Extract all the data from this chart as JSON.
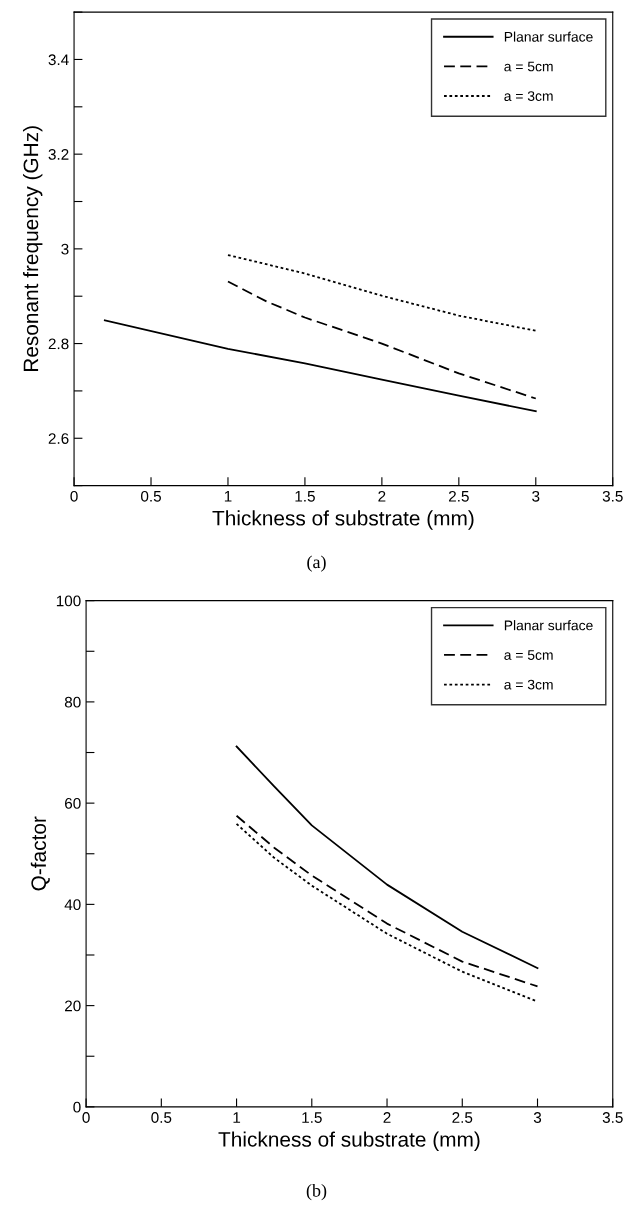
{
  "chart_data": [
    {
      "type": "line",
      "xlabel": "Thickness of substrate (mm)",
      "ylabel": "Resonant frequency (GHz)",
      "annotations": [
        "(a)"
      ],
      "xlim": [
        0,
        3.5
      ],
      "xticks": [
        0,
        0.5,
        1,
        1.5,
        2,
        2.5,
        3,
        3.5
      ],
      "ylim": [
        2.5,
        3.5
      ],
      "yticks": [
        {
          "value": 2.5,
          "label": null
        },
        2.6,
        {
          "value": 2.7,
          "label": null
        },
        2.8,
        {
          "value": 2.9,
          "label": null
        },
        {
          "value": 3,
          "label": "3"
        },
        {
          "value": 3.1,
          "label": null
        },
        3.2,
        {
          "value": 3.3,
          "label": null
        },
        3.4,
        {
          "value": 3.5,
          "label": null
        }
      ],
      "grid": false,
      "legend": "top right",
      "series": [
        {
          "name": "Planar surface",
          "color": "#000000",
          "line_style": "solid",
          "x": [
            0.2,
            1,
            1.5,
            2,
            2.5,
            3
          ],
          "values": [
            2.849,
            2.789,
            2.758,
            2.724,
            2.69,
            2.657
          ]
        },
        {
          "name": "a = 5cm",
          "color": "#000000",
          "line_style": "dashed",
          "x": [
            1,
            1.25,
            1.5,
            2,
            2.5,
            3
          ],
          "values": [
            2.931,
            2.889,
            2.855,
            2.8,
            2.737,
            2.684
          ]
        },
        {
          "name": "a = 3cm",
          "color": "#000000",
          "line_style": "dotted",
          "x": [
            1,
            1.5,
            2,
            2.5,
            3
          ],
          "values": [
            2.987,
            2.948,
            2.901,
            2.859,
            2.827
          ]
        }
      ]
    },
    {
      "type": "line",
      "xlabel": "Thickness of substrate (mm)",
      "ylabel": "Q-factor",
      "annotations": [
        "(b)"
      ],
      "xlim": [
        0,
        3.5
      ],
      "xticks": [
        0,
        0.5,
        1,
        1.5,
        2,
        2.5,
        3,
        3.5
      ],
      "ylim": [
        0,
        100
      ],
      "yticks": [
        0,
        {
          "value": 10,
          "label": null
        },
        20,
        {
          "value": 30,
          "label": null
        },
        40,
        {
          "value": 50,
          "label": null
        },
        60,
        {
          "value": 70,
          "label": null
        },
        80,
        {
          "value": 90,
          "label": null
        },
        100
      ],
      "grid": false,
      "legend": "top right",
      "series": [
        {
          "name": "Planar surface",
          "color": "#000000",
          "line_style": "solid",
          "x": [
            1,
            1.25,
            1.5,
            2,
            2.5,
            3
          ],
          "values": [
            71.2,
            63.3,
            55.6,
            43.9,
            34.6,
            27.4
          ]
        },
        {
          "name": "a = 5cm",
          "color": "#000000",
          "line_style": "dashed",
          "x": [
            1,
            1.25,
            1.5,
            2,
            2.5,
            3
          ],
          "values": [
            57.5,
            51.2,
            45.7,
            36.2,
            28.7,
            23.8
          ]
        },
        {
          "name": "a = 3cm",
          "color": "#000000",
          "line_style": "dotted",
          "x": [
            1,
            1.25,
            1.5,
            2,
            2.5,
            3
          ],
          "values": [
            55.9,
            49.2,
            43.7,
            34.2,
            26.7,
            20.8
          ]
        }
      ]
    }
  ]
}
